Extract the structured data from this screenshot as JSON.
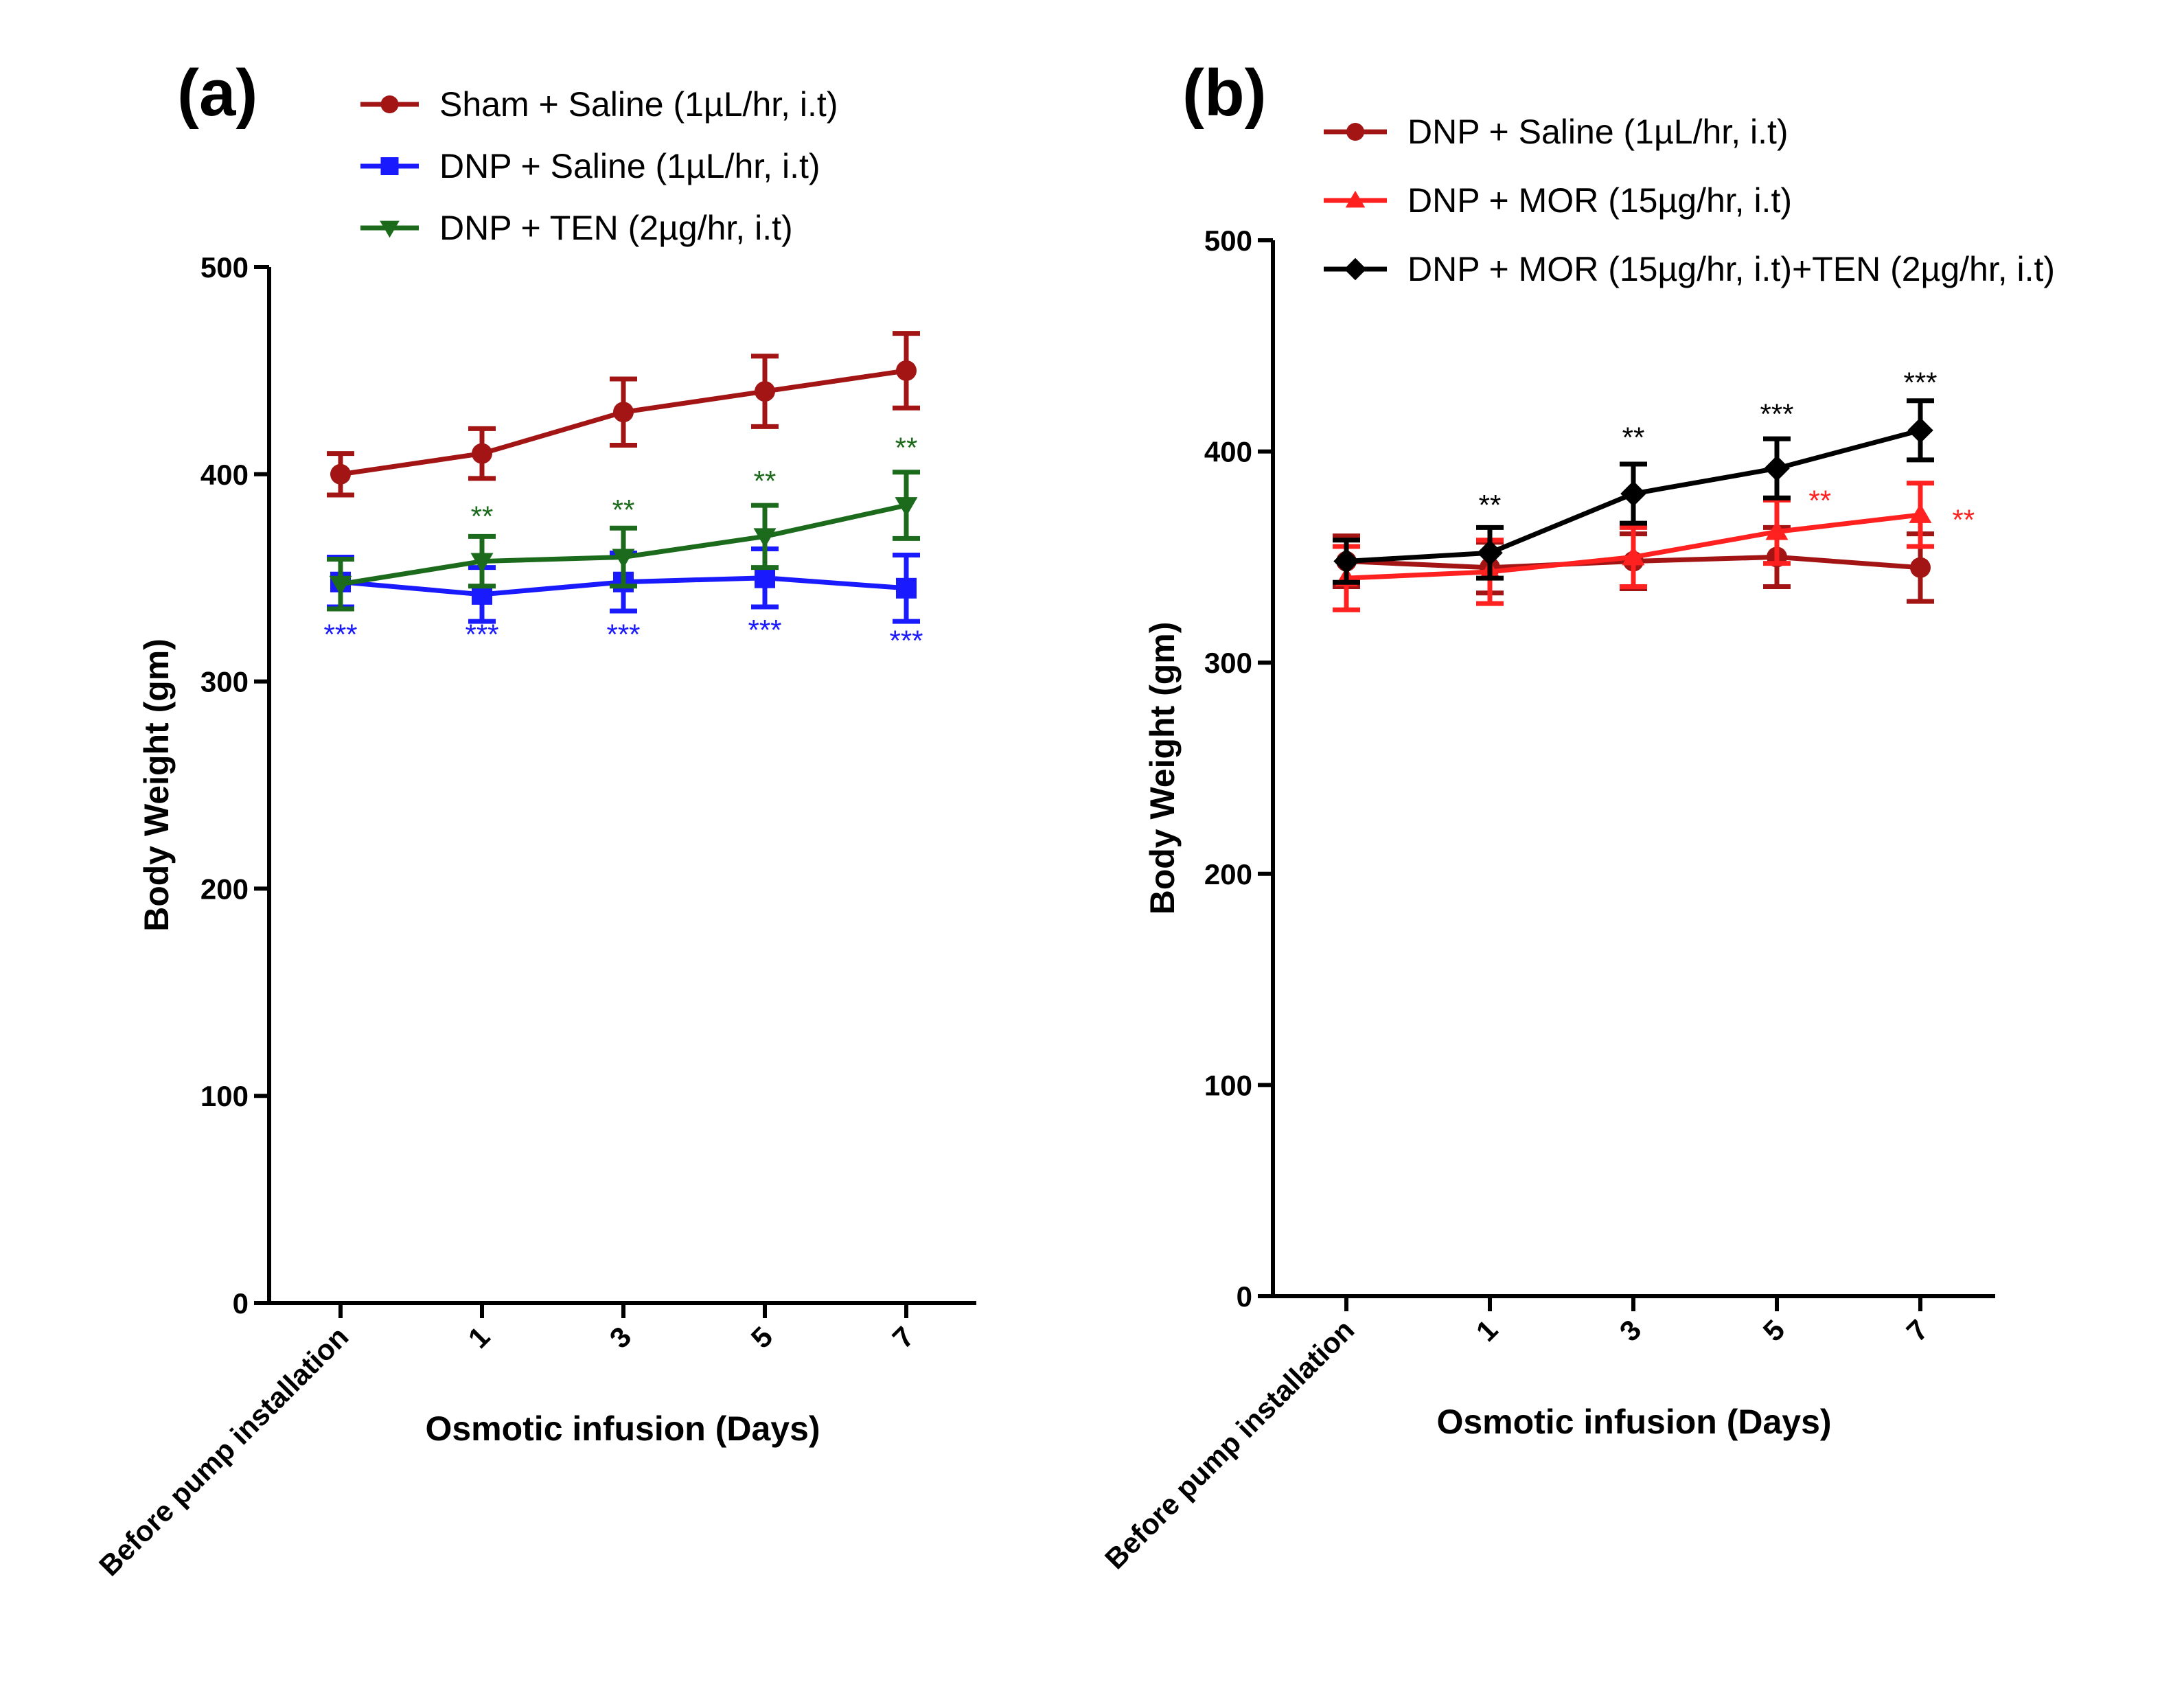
{
  "chart_data": [
    {
      "type": "line",
      "panel_label": "(a)",
      "xlabel": "Osmotic infusion (Days)",
      "ylabel": "Body Weight (gm)",
      "categories": [
        "Before pump installation",
        "1",
        "3",
        "5",
        "7"
      ],
      "ylim": [
        0,
        500
      ],
      "yticks": [
        0,
        100,
        200,
        300,
        400,
        500
      ],
      "legend_position": "top",
      "series": [
        {
          "name": "Sham + Saline (1µL/hr, i.t)",
          "color": "#a31515",
          "marker": "circle",
          "values": [
            400,
            410,
            430,
            440,
            450
          ],
          "errors": [
            10,
            12,
            16,
            17,
            18
          ]
        },
        {
          "name": "DNP + Saline (1µL/hr, i.t)",
          "color": "#1a1aff",
          "marker": "square",
          "values": [
            348,
            342,
            348,
            350,
            345
          ],
          "errors": [
            12,
            13,
            14,
            14,
            16
          ]
        },
        {
          "name": "DNP + TEN (2µg/hr, i.t)",
          "color": "#1c6b1c",
          "marker": "triangle-down",
          "values": [
            347,
            358,
            360,
            370,
            385
          ],
          "errors": [
            12,
            12,
            14,
            15,
            16
          ]
        }
      ],
      "annotations": [
        {
          "text": "***",
          "color": "#1a1aff",
          "x": 0,
          "y": 318
        },
        {
          "text": "***",
          "color": "#1a1aff",
          "x": 1,
          "y": 318
        },
        {
          "text": "***",
          "color": "#1a1aff",
          "x": 2,
          "y": 318
        },
        {
          "text": "***",
          "color": "#1a1aff",
          "x": 3,
          "y": 320
        },
        {
          "text": "***",
          "color": "#1a1aff",
          "x": 4,
          "y": 315
        },
        {
          "text": "**",
          "color": "#1c6b1c",
          "x": 1,
          "y": 375
        },
        {
          "text": "**",
          "color": "#1c6b1c",
          "x": 2,
          "y": 378
        },
        {
          "text": "**",
          "color": "#1c6b1c",
          "x": 3,
          "y": 392
        },
        {
          "text": "**",
          "color": "#1c6b1c",
          "x": 4,
          "y": 408
        }
      ]
    },
    {
      "type": "line",
      "panel_label": "(b)",
      "xlabel": "Osmotic infusion (Days)",
      "ylabel": "Body Weight (gm)",
      "categories": [
        "Before pump installation",
        "1",
        "3",
        "5",
        "7"
      ],
      "ylim": [
        0,
        500
      ],
      "yticks": [
        0,
        100,
        200,
        300,
        400,
        500
      ],
      "legend_position": "top",
      "series": [
        {
          "name": "DNP + Saline (1µL/hr, i.t)",
          "color": "#a31515",
          "marker": "circle",
          "values": [
            348,
            345,
            348,
            350,
            345
          ],
          "errors": [
            12,
            12,
            13,
            14,
            16
          ]
        },
        {
          "name": "DNP + MOR (15µg/hr, i.t)",
          "color": "#ff2020",
          "marker": "triangle-up",
          "values": [
            340,
            343,
            350,
            362,
            370
          ],
          "errors": [
            15,
            15,
            14,
            15,
            15
          ]
        },
        {
          "name": "DNP + MOR (15µg/hr, i.t)+TEN (2µg/hr, i.t)",
          "color": "#000000",
          "marker": "diamond",
          "values": [
            348,
            352,
            380,
            392,
            410
          ],
          "errors": [
            10,
            12,
            14,
            14,
            14
          ]
        }
      ],
      "annotations": [
        {
          "text": "**",
          "color": "#000000",
          "x": 1,
          "y": 370
        },
        {
          "text": "**",
          "color": "#000000",
          "x": 2,
          "y": 402
        },
        {
          "text": "***",
          "color": "#000000",
          "x": 3,
          "y": 413
        },
        {
          "text": "***",
          "color": "#000000",
          "x": 4,
          "y": 428
        },
        {
          "text": "**",
          "color": "#ff2020",
          "x": 3.3,
          "y": 372
        },
        {
          "text": "**",
          "color": "#ff2020",
          "x": 4.3,
          "y": 363
        }
      ]
    }
  ]
}
